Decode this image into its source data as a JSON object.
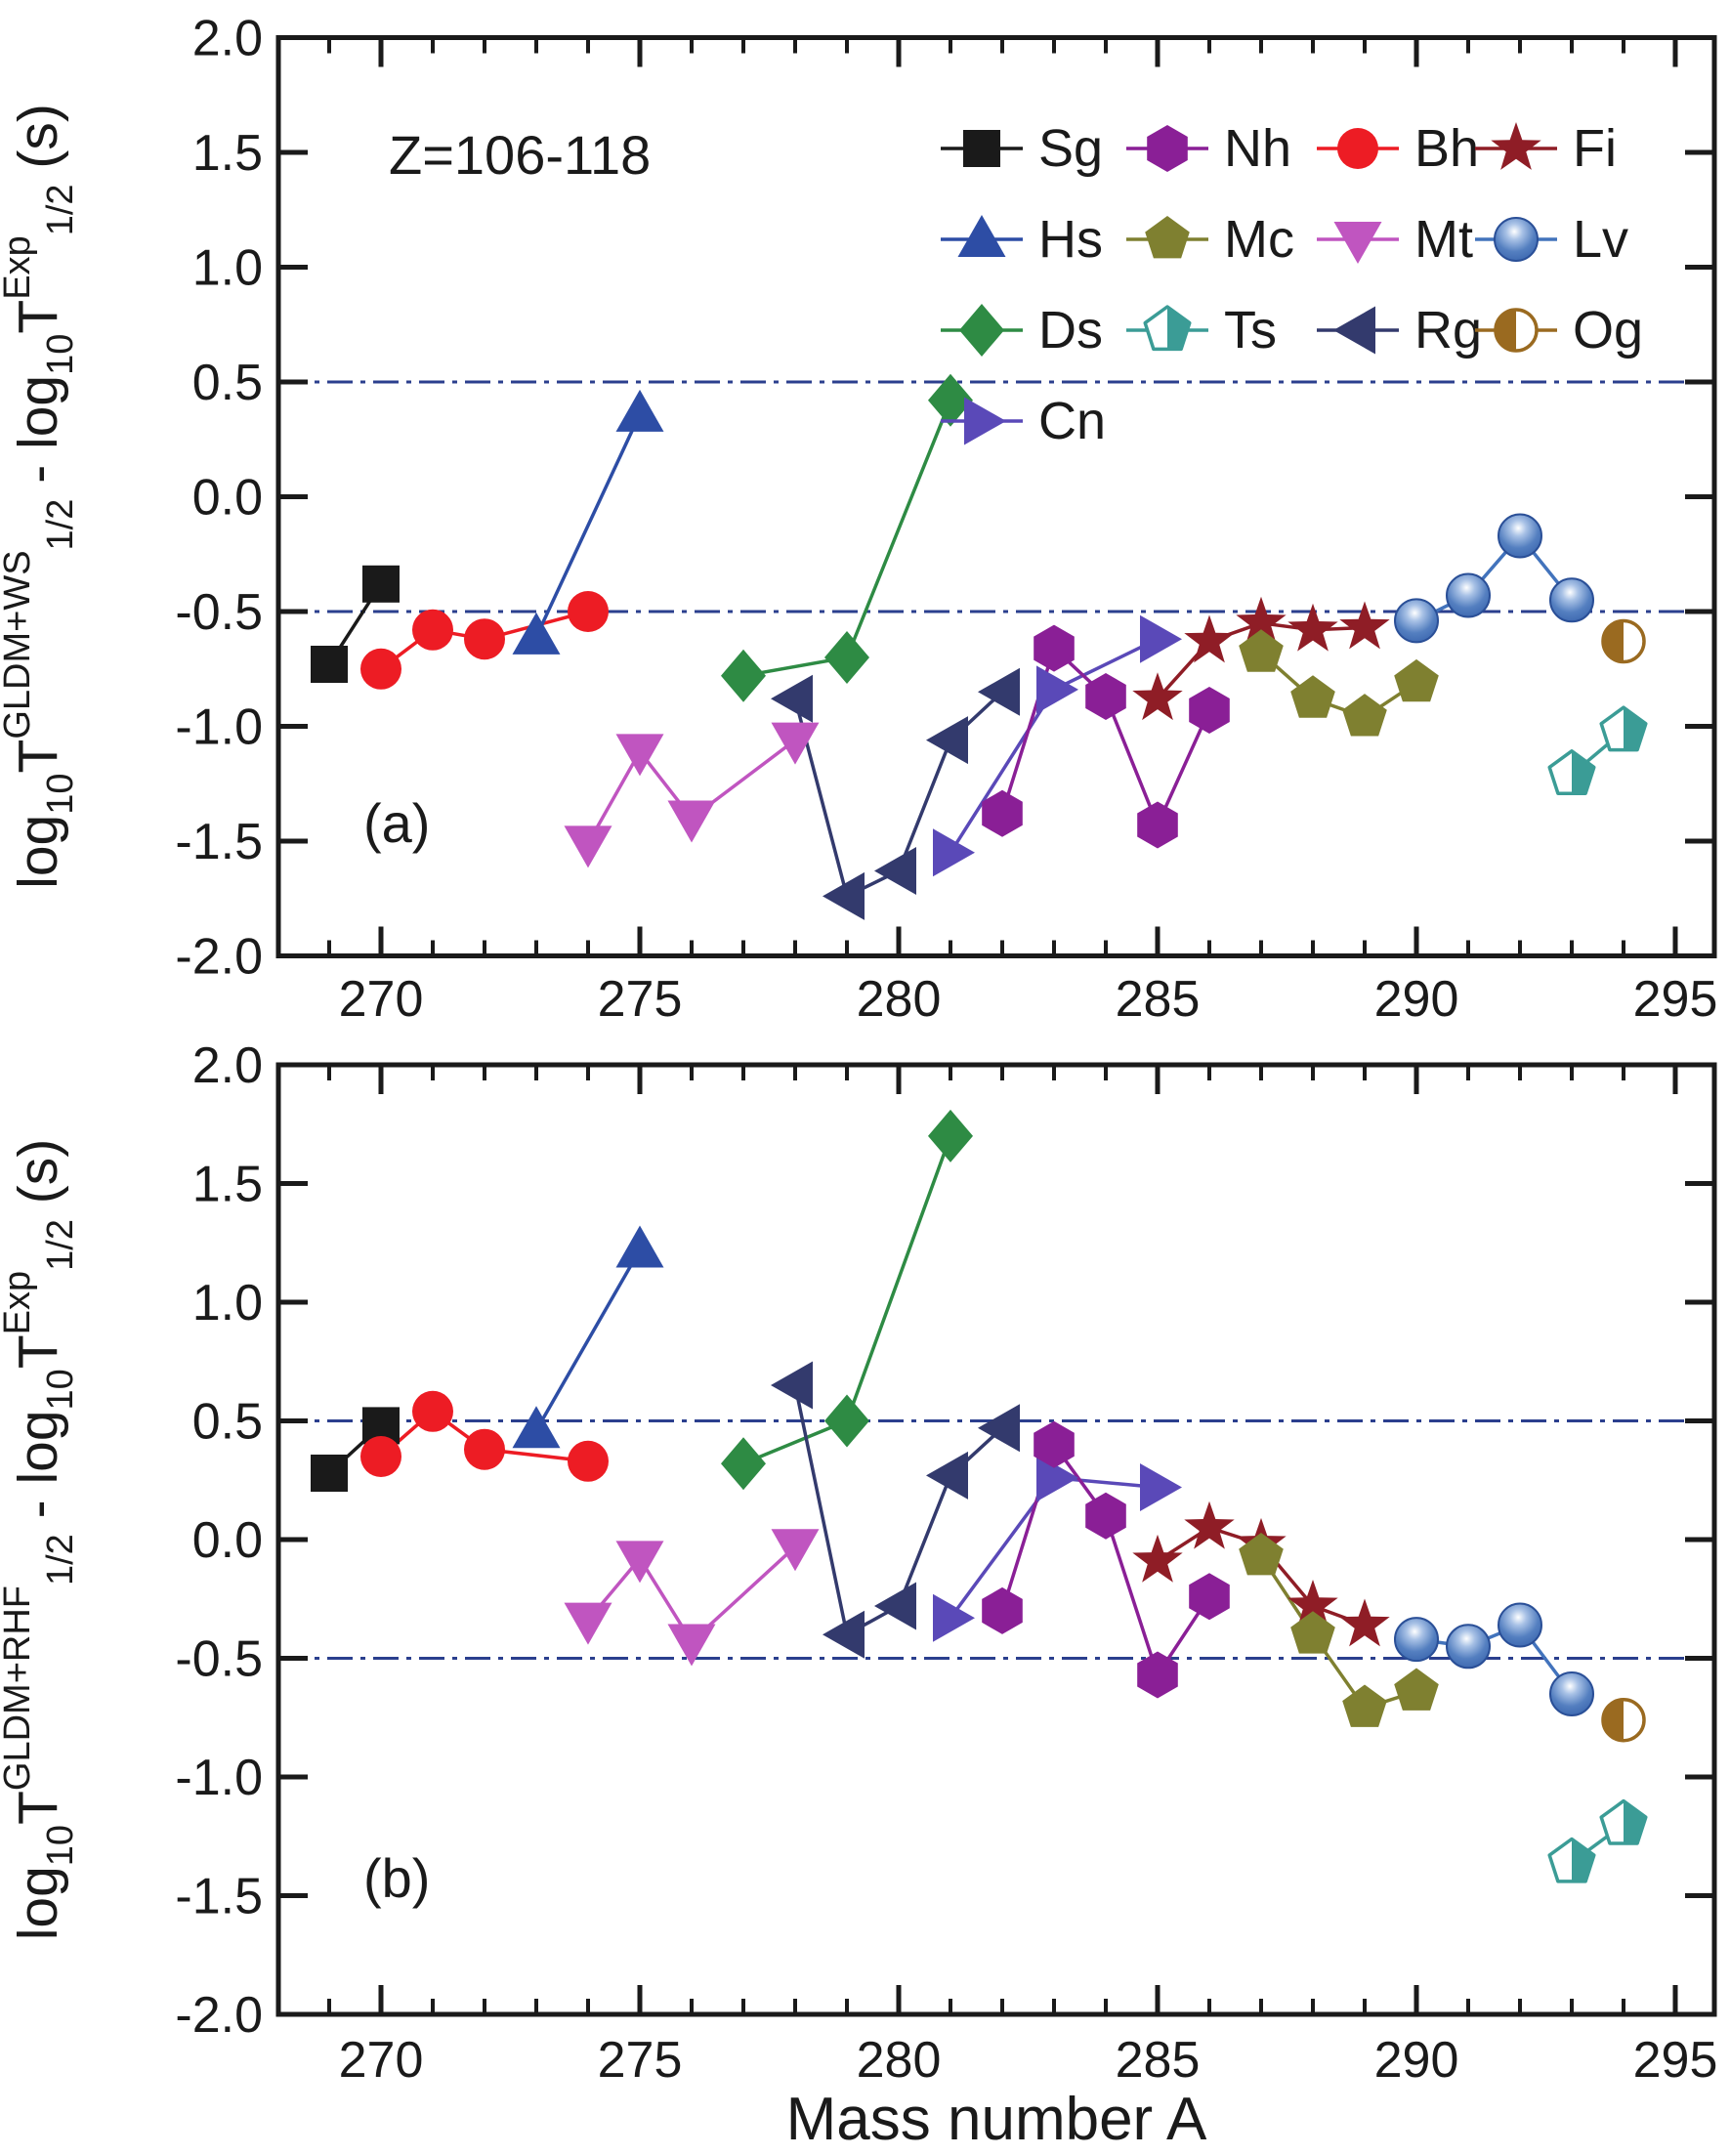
{
  "figure": {
    "annotation": "Z=106-118",
    "panel_a_label": "(a)",
    "panel_b_label": "(b)",
    "xlabel": "Mass number A",
    "x_tick_values": [
      270,
      275,
      280,
      285,
      290,
      295
    ],
    "x_tick_labels": [
      "270",
      "275",
      "280",
      "285",
      "290",
      "295"
    ],
    "y_tick_values": [
      2.0,
      1.5,
      1.0,
      0.5,
      0.0,
      -0.5,
      -1.0,
      -1.5,
      -2.0
    ],
    "y_tick_labels": [
      "2.0",
      "1.5",
      "1.0",
      "0.5",
      "0.0",
      "-0.5",
      "-1.0",
      "-1.5",
      "-2.0"
    ],
    "colors": {
      "axis": "#1a1a1a",
      "reference_line": "#2b3f8e",
      "background": "#ffffff"
    },
    "ylabel_a_parts": [
      {
        "text": "log",
        "style": "main"
      },
      {
        "text": "10",
        "style": "sub"
      },
      {
        "text": "T",
        "style": "main"
      },
      {
        "text": "GLDM+WS",
        "style": "sup"
      },
      {
        "text": "1/2",
        "style": "sub"
      },
      {
        "text": " - log",
        "style": "main"
      },
      {
        "text": "10",
        "style": "sub"
      },
      {
        "text": "T",
        "style": "main"
      },
      {
        "text": "Exp",
        "style": "sup"
      },
      {
        "text": "1/2",
        "style": "sub"
      },
      {
        "text": " (s)",
        "style": "main"
      }
    ],
    "ylabel_b_parts": [
      {
        "text": "log",
        "style": "main"
      },
      {
        "text": "10",
        "style": "sub"
      },
      {
        "text": "T",
        "style": "main"
      },
      {
        "text": "GLDM+RHF",
        "style": "sup"
      },
      {
        "text": "1/2",
        "style": "sub"
      },
      {
        "text": " - log",
        "style": "main"
      },
      {
        "text": "10",
        "style": "sub"
      },
      {
        "text": "T",
        "style": "main"
      },
      {
        "text": "Exp",
        "style": "sup"
      },
      {
        "text": "1/2",
        "style": "sub"
      },
      {
        "text": " (s)",
        "style": "main"
      }
    ]
  },
  "legend": {
    "rows": [
      [
        "Sg",
        "Nh",
        "Bh",
        "Fi"
      ],
      [
        "Hs",
        "Mc",
        "Mt",
        "Lv"
      ],
      [
        "Ds",
        "Ts",
        "Rg",
        "Og"
      ],
      [
        "Cn"
      ]
    ]
  },
  "series_styles": {
    "Sg": {
      "marker": "square",
      "color": "#1a1a1a"
    },
    "Bh": {
      "marker": "circle",
      "color": "#ed1c24"
    },
    "Hs": {
      "marker": "triangle-up",
      "color": "#2d4da5"
    },
    "Mt": {
      "marker": "triangle-down",
      "color": "#c055c0"
    },
    "Ds": {
      "marker": "diamond",
      "color": "#2e8b44"
    },
    "Rg": {
      "marker": "triangle-left",
      "color": "#333a6d"
    },
    "Cn": {
      "marker": "triangle-right",
      "color": "#5a49b8"
    },
    "Nh": {
      "marker": "hexagon",
      "color": "#8a1f96"
    },
    "Fi": {
      "marker": "star",
      "color": "#8f1d26"
    },
    "Mc": {
      "marker": "pentagon",
      "color": "#7f8030"
    },
    "Lv": {
      "marker": "sphere",
      "color": "#4273bc"
    },
    "Ts": {
      "marker": "pentagon-half",
      "color": "#3b9c96"
    },
    "Og": {
      "marker": "circle-half",
      "color": "#9a6a20"
    }
  },
  "chart_data": [
    {
      "type": "line",
      "panel": "(a)",
      "ylabel": "log10 T1/2 GLDM+WS - log10 T1/2 Exp (s)",
      "xlabel": "Mass number A",
      "xlim": [
        268.0,
        295.77
      ],
      "ylim": [
        -2.0,
        2.0
      ],
      "grid": false,
      "legend_position": "top-right",
      "reference_lines": [
        0.5,
        -0.5
      ],
      "series": [
        {
          "name": "Sg",
          "points": [
            [
              269,
              -0.73
            ],
            [
              270,
              -0.38
            ]
          ]
        },
        {
          "name": "Bh",
          "points": [
            [
              270,
              -0.75
            ],
            [
              271,
              -0.58
            ],
            [
              272,
              -0.62
            ],
            [
              274,
              -0.5
            ]
          ]
        },
        {
          "name": "Hs",
          "points": [
            [
              273,
              -0.61
            ],
            [
              275,
              0.36
            ]
          ]
        },
        {
          "name": "Mt",
          "points": [
            [
              274,
              -1.51
            ],
            [
              275,
              -1.11
            ],
            [
              276,
              -1.4
            ],
            [
              278,
              -1.06
            ]
          ]
        },
        {
          "name": "Ds",
          "points": [
            [
              277,
              -0.78
            ],
            [
              279,
              -0.7
            ],
            [
              281,
              0.42
            ]
          ]
        },
        {
          "name": "Rg",
          "points": [
            [
              278,
              -0.88
            ],
            [
              279,
              -1.74
            ],
            [
              280,
              -1.63
            ],
            [
              281,
              -1.06
            ],
            [
              282,
              -0.85
            ]
          ]
        },
        {
          "name": "Cn",
          "points": [
            [
              281,
              -1.55
            ],
            [
              283,
              -0.84
            ],
            [
              285,
              -0.62
            ]
          ]
        },
        {
          "name": "Nh",
          "points": [
            [
              282,
              -1.38
            ],
            [
              283,
              -0.66
            ],
            [
              284,
              -0.87
            ],
            [
              285,
              -1.43
            ],
            [
              286,
              -0.93
            ]
          ]
        },
        {
          "name": "Fi",
          "points": [
            [
              285,
              -0.88
            ],
            [
              286,
              -0.63
            ],
            [
              287,
              -0.55
            ],
            [
              288,
              -0.58
            ],
            [
              289,
              -0.57
            ]
          ]
        },
        {
          "name": "Mc",
          "points": [
            [
              287,
              -0.68
            ],
            [
              288,
              -0.88
            ],
            [
              289,
              -0.96
            ],
            [
              290,
              -0.81
            ]
          ]
        },
        {
          "name": "Lv",
          "points": [
            [
              290,
              -0.54
            ],
            [
              291,
              -0.43
            ],
            [
              292,
              -0.17
            ],
            [
              293,
              -0.45
            ]
          ]
        },
        {
          "name": "Ts",
          "points": [
            [
              293,
              -1.21
            ],
            [
              294,
              -1.02
            ]
          ]
        },
        {
          "name": "Og",
          "points": [
            [
              294,
              -0.63
            ]
          ]
        }
      ]
    },
    {
      "type": "line",
      "panel": "(b)",
      "ylabel": "log10 T1/2 GLDM+RHF - log10 T1/2 Exp (s)",
      "xlabel": "Mass number A",
      "xlim": [
        268.0,
        295.77
      ],
      "ylim": [
        -2.0,
        2.0
      ],
      "grid": false,
      "legend_position": "none",
      "reference_lines": [
        0.5,
        -0.5
      ],
      "series": [
        {
          "name": "Sg",
          "points": [
            [
              269,
              0.28
            ],
            [
              270,
              0.48
            ]
          ]
        },
        {
          "name": "Bh",
          "points": [
            [
              270,
              0.35
            ],
            [
              271,
              0.54
            ],
            [
              272,
              0.38
            ],
            [
              274,
              0.33
            ]
          ]
        },
        {
          "name": "Hs",
          "points": [
            [
              273,
              0.46
            ],
            [
              275,
              1.22
            ]
          ]
        },
        {
          "name": "Mt",
          "points": [
            [
              274,
              -0.34
            ],
            [
              275,
              -0.08
            ],
            [
              276,
              -0.43
            ],
            [
              278,
              -0.03
            ]
          ]
        },
        {
          "name": "Ds",
          "points": [
            [
              277,
              0.32
            ],
            [
              279,
              0.5
            ],
            [
              281,
              1.7
            ]
          ]
        },
        {
          "name": "Rg",
          "points": [
            [
              278,
              0.65
            ],
            [
              279,
              -0.4
            ],
            [
              280,
              -0.28
            ],
            [
              281,
              0.27
            ],
            [
              282,
              0.47
            ]
          ]
        },
        {
          "name": "Cn",
          "points": [
            [
              281,
              -0.33
            ],
            [
              283,
              0.26
            ],
            [
              285,
              0.22
            ]
          ]
        },
        {
          "name": "Nh",
          "points": [
            [
              282,
              -0.3
            ],
            [
              283,
              0.4
            ],
            [
              284,
              0.1
            ],
            [
              285,
              -0.57
            ],
            [
              286,
              -0.24
            ]
          ]
        },
        {
          "name": "Fi",
          "points": [
            [
              285,
              -0.09
            ],
            [
              286,
              0.05
            ],
            [
              287,
              -0.02
            ],
            [
              288,
              -0.28
            ],
            [
              289,
              -0.36
            ]
          ]
        },
        {
          "name": "Mc",
          "points": [
            [
              287,
              -0.07
            ],
            [
              288,
              -0.4
            ],
            [
              289,
              -0.71
            ],
            [
              290,
              -0.64
            ]
          ]
        },
        {
          "name": "Lv",
          "points": [
            [
              290,
              -0.42
            ],
            [
              291,
              -0.45
            ],
            [
              292,
              -0.36
            ],
            [
              293,
              -0.65
            ]
          ]
        },
        {
          "name": "Ts",
          "points": [
            [
              293,
              -1.36
            ],
            [
              294,
              -1.2
            ]
          ]
        },
        {
          "name": "Og",
          "points": [
            [
              294,
              -0.76
            ]
          ]
        }
      ]
    }
  ]
}
